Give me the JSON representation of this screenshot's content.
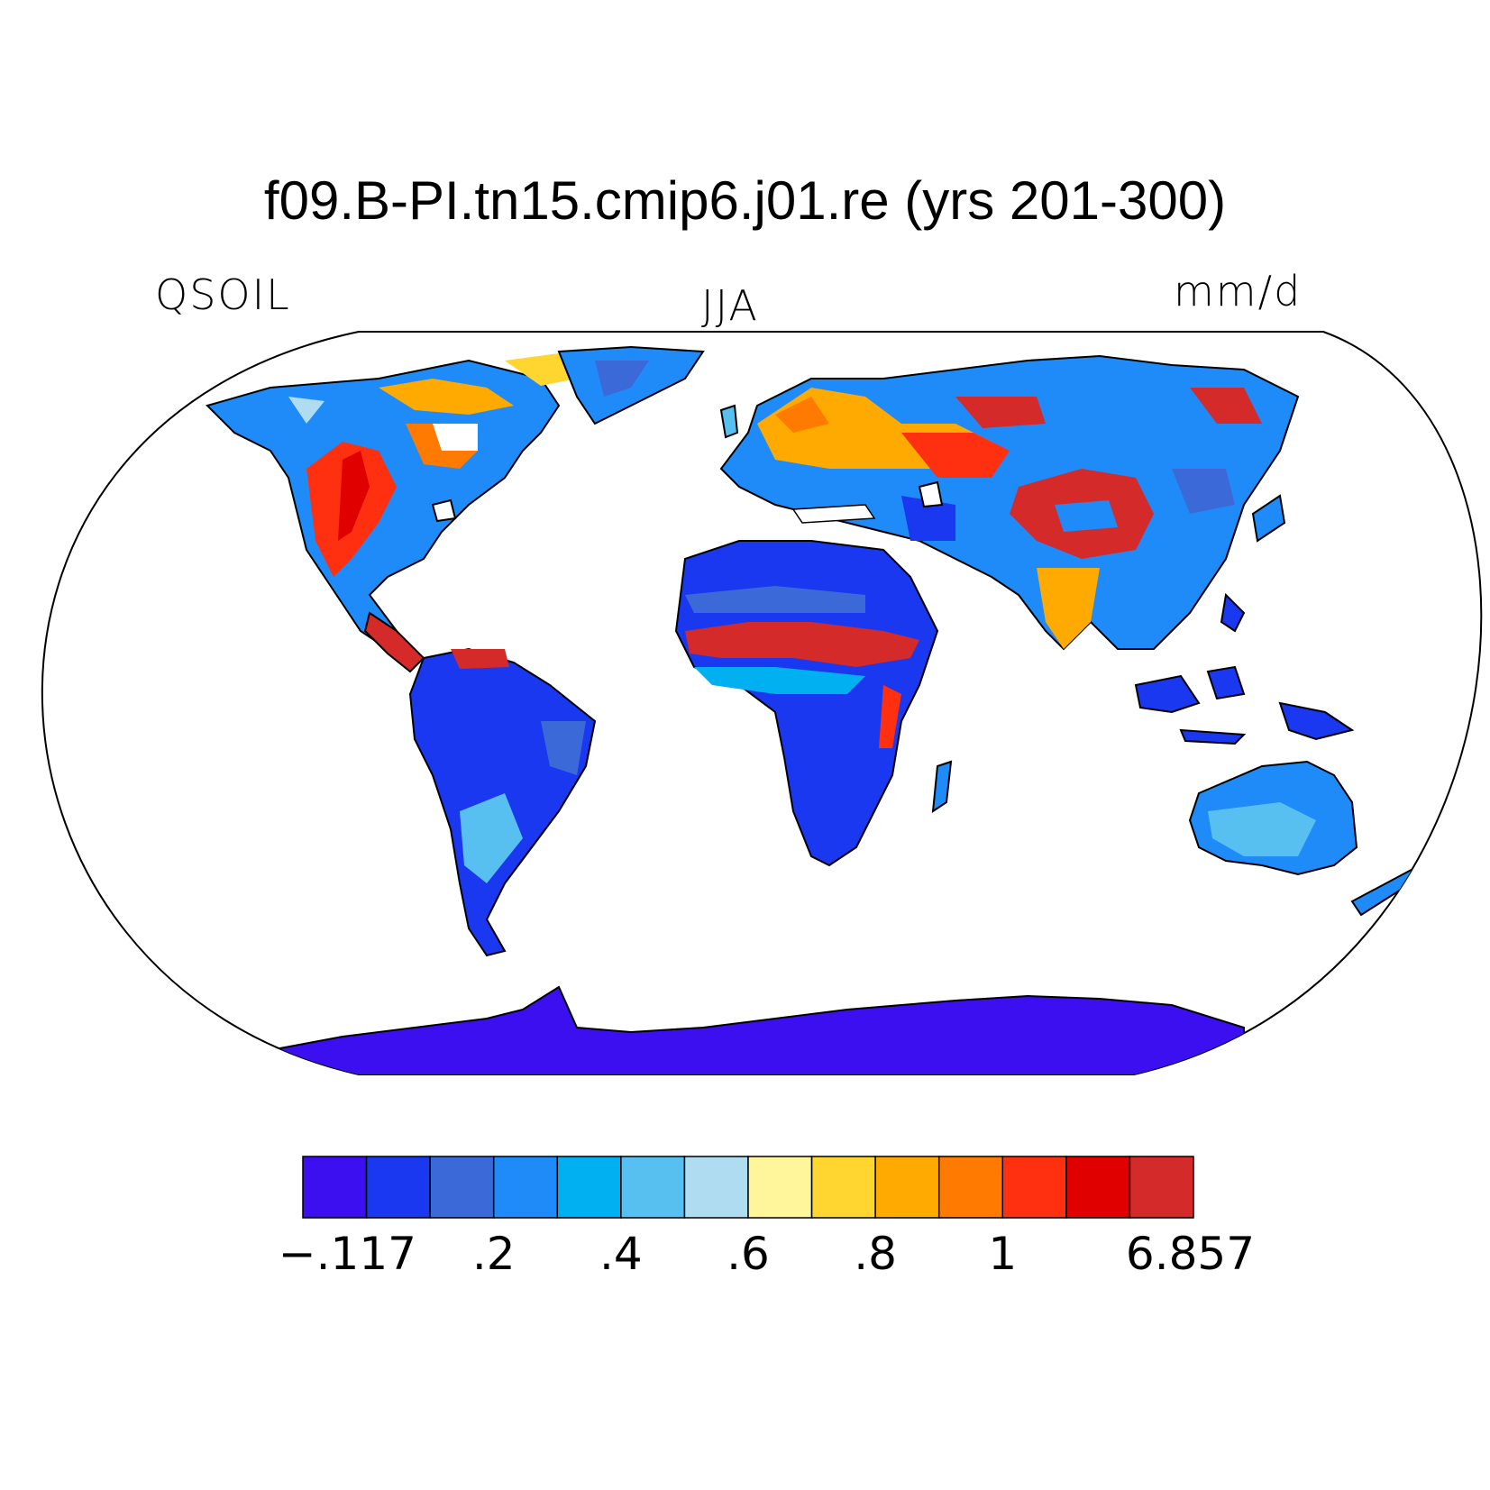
{
  "title": "f09.B-PI.tn15.cmip6.j01.re (yrs 201-300)",
  "left_label": "QSOIL",
  "center_label": "JJA",
  "right_label": "mm/d",
  "colorbar": {
    "colors": [
      "#3b0ff0",
      "#1a38f0",
      "#3b6ad8",
      "#1f8bf8",
      "#00b0f0",
      "#58c0f0",
      "#b0dcf2",
      "#fff59a",
      "#ffd530",
      "#ffaa00",
      "#ff7a00",
      "#ff3010",
      "#e00000",
      "#d42a2a"
    ],
    "tick_labels": [
      "−.117",
      ".2",
      ".4",
      ".6",
      ".8",
      "1",
      "6.857"
    ]
  }
}
